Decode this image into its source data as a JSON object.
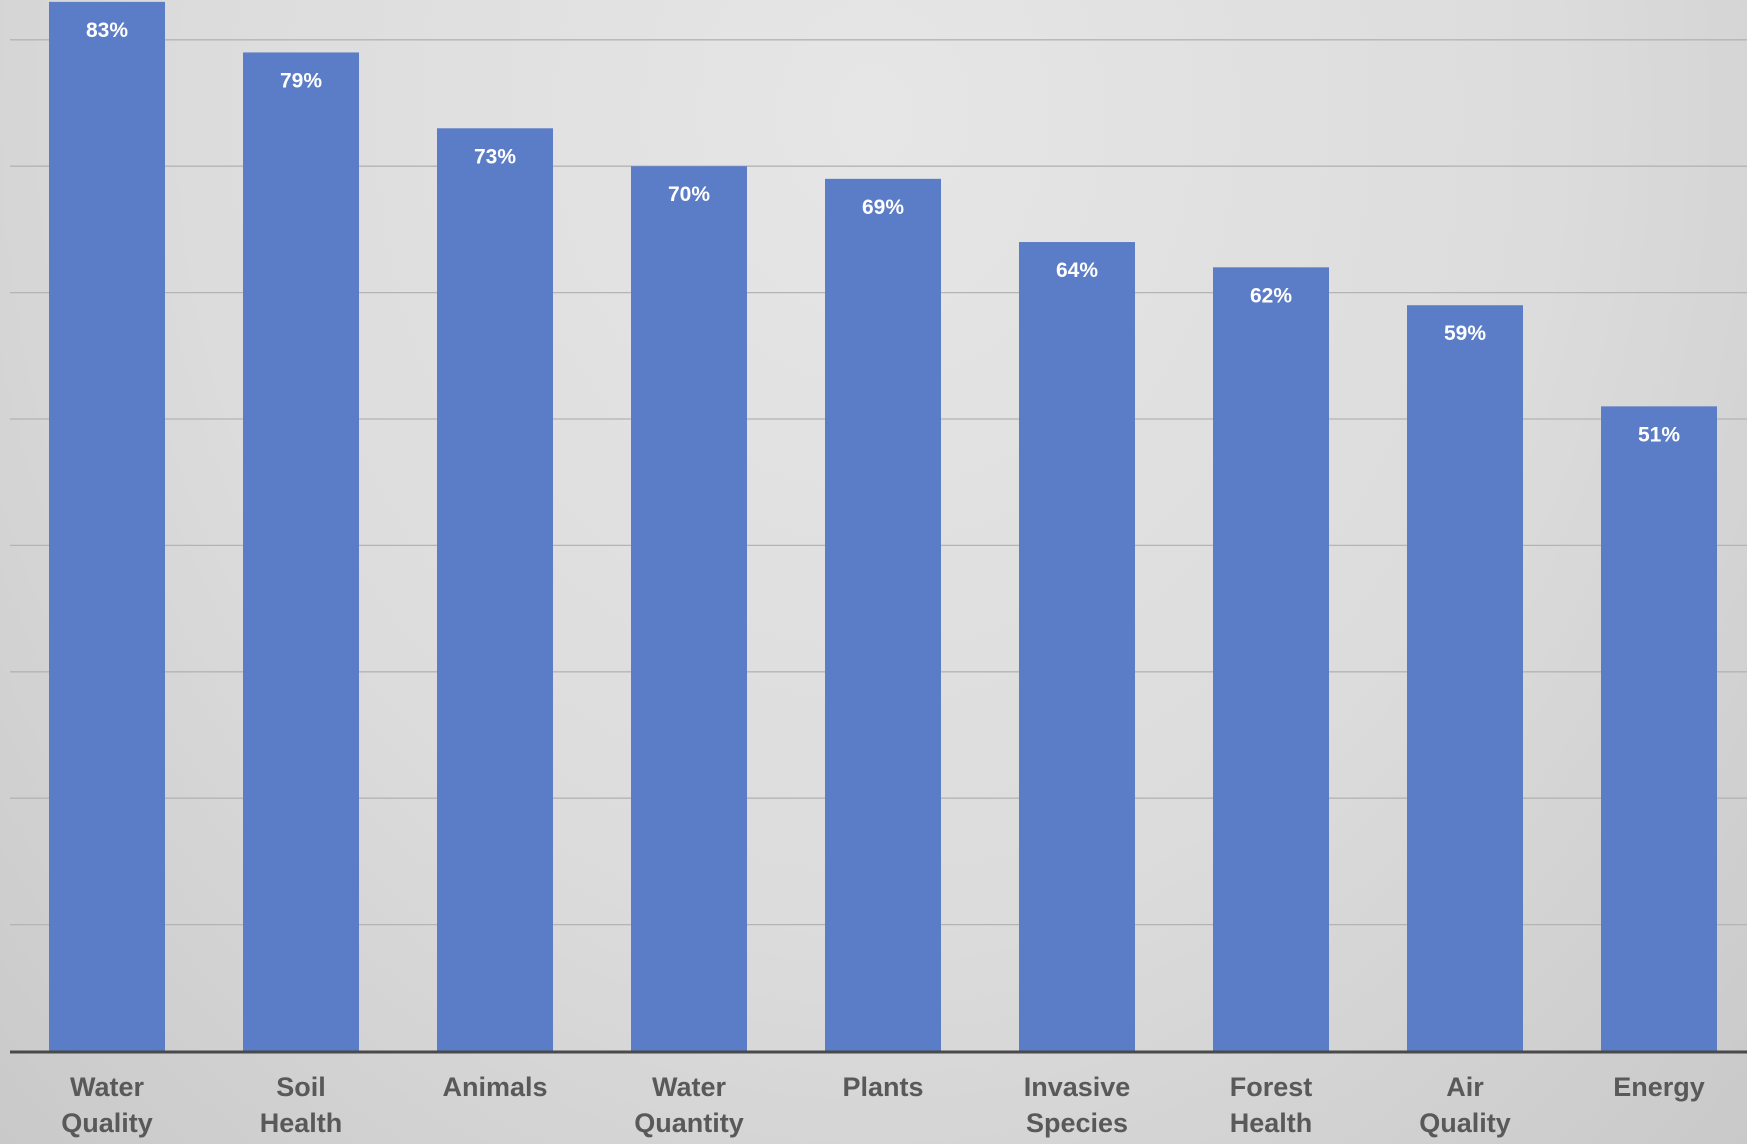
{
  "chart_data": {
    "type": "bar",
    "categories": [
      [
        "Water",
        "Quality"
      ],
      [
        "Soil",
        "Health"
      ],
      [
        "Animals"
      ],
      [
        "Water",
        "Quantity"
      ],
      [
        "Plants"
      ],
      [
        "Invasive",
        "Species"
      ],
      [
        "Forest",
        "Health"
      ],
      [
        "Air",
        "Quality"
      ],
      [
        "Energy"
      ]
    ],
    "values": [
      83,
      79,
      73,
      70,
      69,
      64,
      62,
      59,
      51
    ],
    "value_labels": [
      "83%",
      "79%",
      "73%",
      "70%",
      "69%",
      "64%",
      "62%",
      "59%",
      "51%"
    ],
    "ylim": [
      0,
      80
    ],
    "y_grid_step": 10,
    "grid": true,
    "title": "",
    "xlabel": "",
    "ylabel": "",
    "legend": "none",
    "colors": {
      "bar": "#5b7cc6",
      "gridline": "#b4b4b4",
      "axis": "#4a4a4a",
      "data_label": "#ffffff",
      "tick_label": "#595959"
    }
  }
}
